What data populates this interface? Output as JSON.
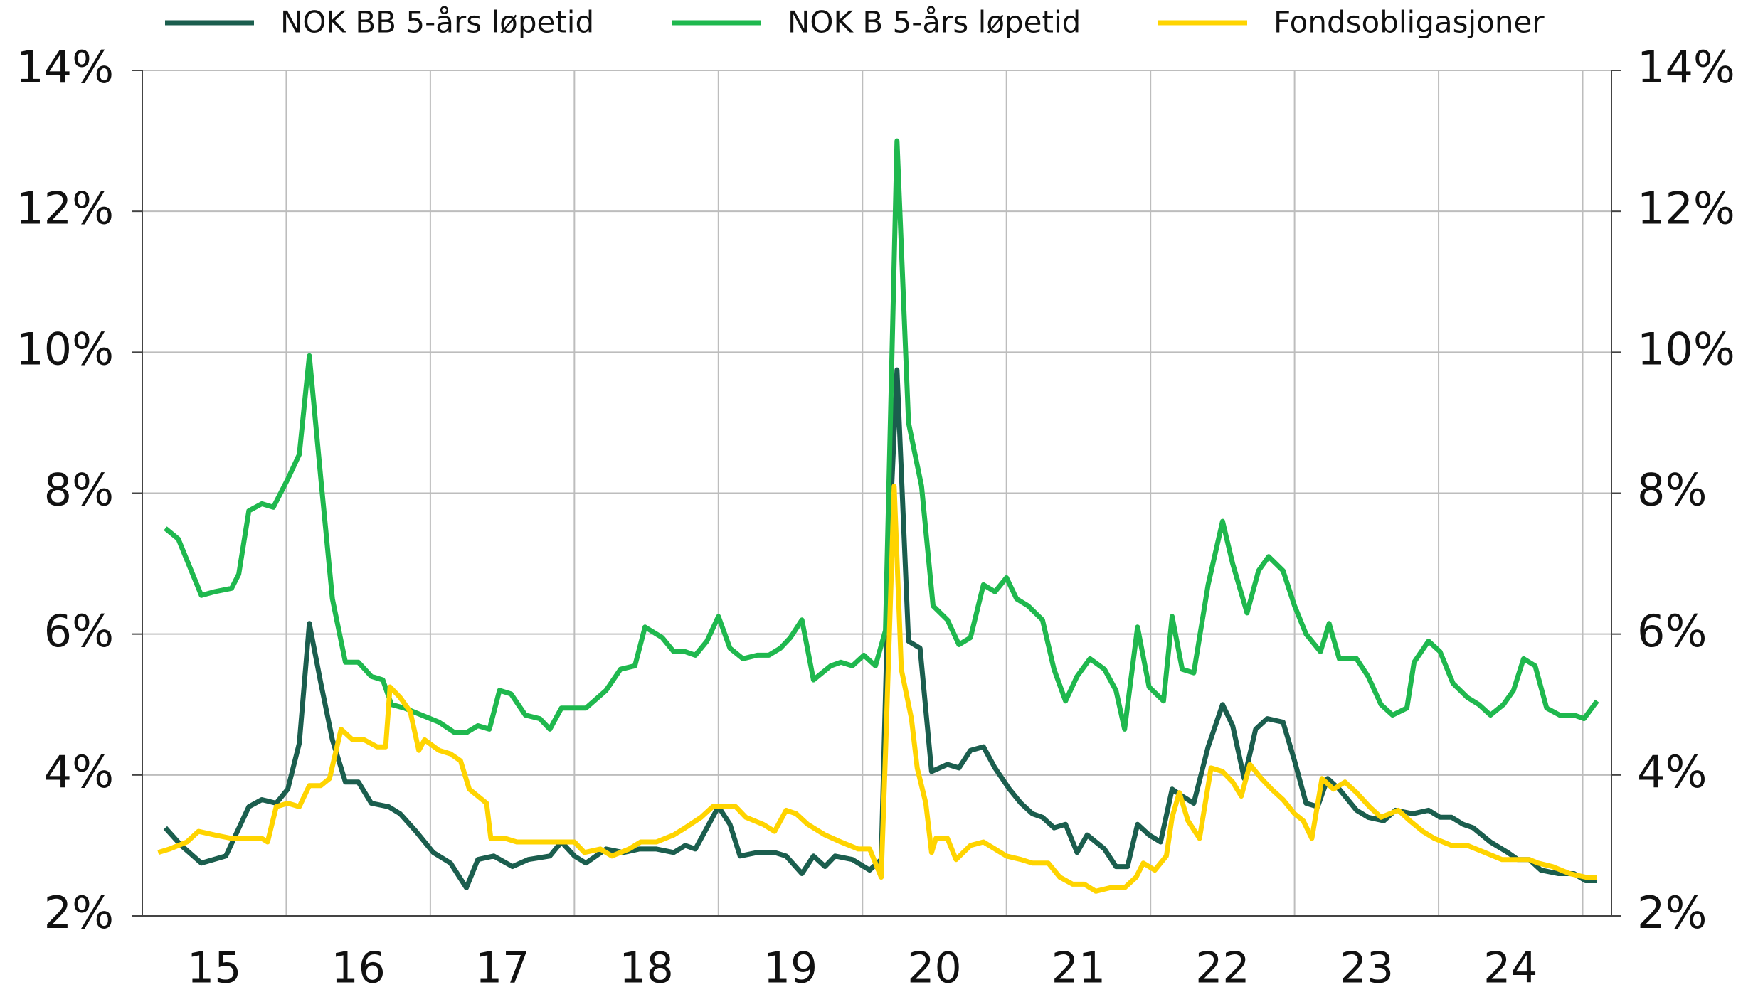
{
  "chart_data": {
    "type": "line",
    "xlim": [
      2015,
      2025.2
    ],
    "xticks": [
      {
        "value": 2015.5,
        "label": "15"
      },
      {
        "value": 2016.5,
        "label": "16"
      },
      {
        "value": 2017.5,
        "label": "17"
      },
      {
        "value": 2018.5,
        "label": "18"
      },
      {
        "value": 2019.5,
        "label": "19"
      },
      {
        "value": 2020.5,
        "label": "20"
      },
      {
        "value": 2021.5,
        "label": "21"
      },
      {
        "value": 2022.5,
        "label": "22"
      },
      {
        "value": 2023.5,
        "label": "23"
      },
      {
        "value": 2024.5,
        "label": "24"
      }
    ],
    "xgrid": [
      2016,
      2017,
      2018,
      2019,
      2020,
      2021,
      2022,
      2023,
      2024,
      2025
    ],
    "ylim": [
      2,
      14
    ],
    "yticks": [
      {
        "value": 2,
        "label": "2%"
      },
      {
        "value": 4,
        "label": "4%"
      },
      {
        "value": 6,
        "label": "6%"
      },
      {
        "value": 8,
        "label": "8%"
      },
      {
        "value": 10,
        "label": "10%"
      },
      {
        "value": 12,
        "label": "12%"
      },
      {
        "value": 14,
        "label": "14%"
      }
    ],
    "y2lim": [
      2,
      14
    ],
    "y2ticks": [
      {
        "value": 2,
        "label": "2%"
      },
      {
        "value": 4,
        "label": "4%"
      },
      {
        "value": 6,
        "label": "6%"
      },
      {
        "value": 8,
        "label": "8%"
      },
      {
        "value": 10,
        "label": "10%"
      },
      {
        "value": 12,
        "label": "12%"
      },
      {
        "value": 14,
        "label": "14%"
      }
    ],
    "grid": true,
    "legend": "top",
    "series": [
      {
        "name": "NOK BB 5-års løpetid",
        "color": "#1b5e4e",
        "x": [
          2015.16,
          2015.27,
          2015.41,
          2015.58,
          2015.74,
          2015.83,
          2015.93,
          2016.01,
          2016.09,
          2016.16,
          2016.24,
          2016.32,
          2016.41,
          2016.5,
          2016.59,
          2016.71,
          2016.79,
          2016.9,
          2017.02,
          2017.14,
          2017.25,
          2017.33,
          2017.44,
          2017.57,
          2017.68,
          2017.83,
          2017.91,
          2018.0,
          2018.08,
          2018.22,
          2018.34,
          2018.45,
          2018.57,
          2018.69,
          2018.77,
          2018.84,
          2019.0,
          2019.08,
          2019.15,
          2019.27,
          2019.39,
          2019.47,
          2019.58,
          2019.66,
          2019.74,
          2019.81,
          2019.93,
          2020.05,
          2020.13,
          2020.19,
          2020.24,
          2020.32,
          2020.4,
          2020.48,
          2020.59,
          2020.67,
          2020.75,
          2020.84,
          2020.92,
          2021.02,
          2021.1,
          2021.18,
          2021.25,
          2021.33,
          2021.41,
          2021.49,
          2021.56,
          2021.68,
          2021.76,
          2021.84,
          2021.91,
          2021.99,
          2022.07,
          2022.15,
          2022.22,
          2022.3,
          2022.4,
          2022.5,
          2022.57,
          2022.65,
          2022.73,
          2022.81,
          2022.92,
          2023.0,
          2023.08,
          2023.16,
          2023.23,
          2023.31,
          2023.43,
          2023.51,
          2023.62,
          2023.7,
          2023.82,
          2023.93,
          2024.01,
          2024.09,
          2024.17,
          2024.24,
          2024.36,
          2024.48,
          2024.55,
          2024.63,
          2024.71,
          2024.83,
          2024.94,
          2025.02,
          2025.1
        ],
        "values": [
          3.25,
          3.0,
          2.75,
          2.85,
          3.55,
          3.65,
          3.6,
          3.8,
          4.45,
          6.15,
          5.3,
          4.5,
          3.9,
          3.9,
          3.6,
          3.55,
          3.45,
          3.2,
          2.9,
          2.75,
          2.4,
          2.8,
          2.85,
          2.7,
          2.8,
          2.85,
          3.05,
          2.85,
          2.75,
          2.95,
          2.9,
          2.95,
          2.95,
          2.9,
          3.0,
          2.95,
          3.55,
          3.3,
          2.85,
          2.9,
          2.9,
          2.85,
          2.6,
          2.85,
          2.7,
          2.85,
          2.8,
          2.65,
          2.8,
          7.5,
          9.75,
          5.9,
          5.8,
          4.05,
          4.15,
          4.1,
          4.35,
          4.4,
          4.1,
          3.8,
          3.6,
          3.45,
          3.4,
          3.25,
          3.3,
          2.9,
          3.15,
          2.95,
          2.7,
          2.7,
          3.3,
          3.15,
          3.05,
          3.8,
          3.7,
          3.6,
          4.4,
          5.0,
          4.7,
          3.95,
          4.65,
          4.8,
          4.75,
          4.2,
          3.6,
          3.55,
          3.95,
          3.8,
          3.5,
          3.4,
          3.35,
          3.5,
          3.45,
          3.5,
          3.4,
          3.4,
          3.3,
          3.25,
          3.05,
          2.9,
          2.8,
          2.8,
          2.65,
          2.6,
          2.6,
          2.5,
          2.5
        ]
      },
      {
        "name": "NOK B 5-års løpetid",
        "color": "#1fb84e",
        "x": [
          2015.16,
          2015.25,
          2015.41,
          2015.5,
          2015.62,
          2015.67,
          2015.74,
          2015.83,
          2015.91,
          2016.01,
          2016.09,
          2016.16,
          2016.24,
          2016.32,
          2016.41,
          2016.5,
          2016.59,
          2016.67,
          2016.73,
          2016.82,
          2016.94,
          2017.06,
          2017.17,
          2017.25,
          2017.33,
          2017.41,
          2017.48,
          2017.56,
          2017.66,
          2017.76,
          2017.83,
          2017.91,
          2018.0,
          2018.08,
          2018.22,
          2018.32,
          2018.42,
          2018.49,
          2018.61,
          2018.69,
          2018.77,
          2018.84,
          2018.92,
          2019.0,
          2019.08,
          2019.17,
          2019.27,
          2019.35,
          2019.43,
          2019.5,
          2019.58,
          2019.66,
          2019.78,
          2019.85,
          2019.93,
          2020.01,
          2020.09,
          2020.16,
          2020.24,
          2020.32,
          2020.41,
          2020.49,
          2020.59,
          2020.67,
          2020.75,
          2020.84,
          2020.92,
          2021.0,
          2021.07,
          2021.15,
          2021.25,
          2021.33,
          2021.41,
          2021.49,
          2021.58,
          2021.68,
          2021.76,
          2021.82,
          2021.91,
          2021.99,
          2022.09,
          2022.15,
          2022.22,
          2022.3,
          2022.4,
          2022.5,
          2022.57,
          2022.67,
          2022.75,
          2022.82,
          2022.92,
          2023.0,
          2023.08,
          2023.18,
          2023.24,
          2023.31,
          2023.43,
          2023.51,
          2023.6,
          2023.68,
          2023.78,
          2023.83,
          2023.93,
          2024.01,
          2024.1,
          2024.2,
          2024.28,
          2024.36,
          2024.45,
          2024.52,
          2024.59,
          2024.67,
          2024.75,
          2024.84,
          2024.94,
          2025.01,
          2025.1
        ],
        "values": [
          7.5,
          7.35,
          6.55,
          6.6,
          6.65,
          6.85,
          7.75,
          7.85,
          7.8,
          8.2,
          8.55,
          9.95,
          8.2,
          6.5,
          5.6,
          5.6,
          5.4,
          5.35,
          5.0,
          4.95,
          4.85,
          4.75,
          4.6,
          4.6,
          4.7,
          4.65,
          5.2,
          5.15,
          4.85,
          4.8,
          4.65,
          4.95,
          4.95,
          4.95,
          5.2,
          5.5,
          5.55,
          6.1,
          5.95,
          5.75,
          5.75,
          5.7,
          5.9,
          6.25,
          5.8,
          5.65,
          5.7,
          5.7,
          5.8,
          5.95,
          6.2,
          5.35,
          5.55,
          5.6,
          5.55,
          5.7,
          5.55,
          6.05,
          13.0,
          9.0,
          8.1,
          6.4,
          6.2,
          5.85,
          5.95,
          6.7,
          6.6,
          6.8,
          6.5,
          6.4,
          6.2,
          5.5,
          5.05,
          5.4,
          5.65,
          5.5,
          5.2,
          4.65,
          6.1,
          5.25,
          5.05,
          6.25,
          5.5,
          5.45,
          6.7,
          7.6,
          7.0,
          6.3,
          6.9,
          7.1,
          6.9,
          6.4,
          6.0,
          5.75,
          6.15,
          5.65,
          5.65,
          5.4,
          5.0,
          4.85,
          4.95,
          5.6,
          5.9,
          5.75,
          5.3,
          5.1,
          5.0,
          4.85,
          5.0,
          5.2,
          5.65,
          5.55,
          4.95,
          4.85,
          4.85,
          4.8,
          5.05
        ]
      },
      {
        "name": "Fondsobligasjoner",
        "color": "#ffd400",
        "x": [
          2015.11,
          2015.19,
          2015.31,
          2015.39,
          2015.5,
          2015.62,
          2015.74,
          2015.83,
          2015.87,
          2015.93,
          2016.01,
          2016.09,
          2016.16,
          2016.24,
          2016.3,
          2016.38,
          2016.46,
          2016.54,
          2016.63,
          2016.69,
          2016.72,
          2016.79,
          2016.86,
          2016.92,
          2016.96,
          2017.06,
          2017.14,
          2017.21,
          2017.27,
          2017.33,
          2017.39,
          2017.42,
          2017.52,
          2017.6,
          2017.68,
          2017.79,
          2017.91,
          2018.0,
          2018.07,
          2018.18,
          2018.26,
          2018.38,
          2018.46,
          2018.57,
          2018.69,
          2018.77,
          2018.88,
          2018.96,
          2019.04,
          2019.12,
          2019.19,
          2019.31,
          2019.39,
          2019.47,
          2019.54,
          2019.62,
          2019.74,
          2019.85,
          2019.97,
          2020.05,
          2020.13,
          2020.16,
          2020.22,
          2020.27,
          2020.34,
          2020.38,
          2020.44,
          2020.48,
          2020.51,
          2020.59,
          2020.65,
          2020.75,
          2020.84,
          2020.92,
          2021.0,
          2021.1,
          2021.18,
          2021.29,
          2021.37,
          2021.46,
          2021.54,
          2021.62,
          2021.72,
          2021.82,
          2021.9,
          2021.95,
          2022.03,
          2022.11,
          2022.15,
          2022.2,
          2022.26,
          2022.34,
          2022.42,
          2022.5,
          2022.57,
          2022.63,
          2022.69,
          2022.77,
          2022.84,
          2022.92,
          2023.0,
          2023.06,
          2023.12,
          2023.19,
          2023.27,
          2023.35,
          2023.43,
          2023.52,
          2023.6,
          2023.66,
          2023.72,
          2023.8,
          2023.89,
          2023.97,
          2024.09,
          2024.2,
          2024.32,
          2024.44,
          2024.55,
          2024.63,
          2024.69,
          2024.79,
          2024.91,
          2025.02,
          2025.1
        ],
        "values": [
          2.9,
          2.95,
          3.05,
          3.2,
          3.15,
          3.1,
          3.1,
          3.1,
          3.05,
          3.55,
          3.6,
          3.55,
          3.85,
          3.85,
          3.95,
          4.65,
          4.5,
          4.5,
          4.4,
          4.4,
          5.25,
          5.1,
          4.9,
          4.35,
          4.5,
          4.35,
          4.3,
          4.2,
          3.8,
          3.7,
          3.6,
          3.1,
          3.1,
          3.05,
          3.05,
          3.05,
          3.05,
          3.05,
          2.9,
          2.95,
          2.85,
          2.95,
          3.05,
          3.05,
          3.15,
          3.25,
          3.4,
          3.55,
          3.55,
          3.55,
          3.4,
          3.3,
          3.2,
          3.5,
          3.45,
          3.3,
          3.15,
          3.05,
          2.95,
          2.95,
          2.55,
          4.3,
          8.1,
          5.5,
          4.8,
          4.1,
          3.6,
          2.9,
          3.1,
          3.1,
          2.8,
          3.0,
          3.05,
          2.95,
          2.85,
          2.8,
          2.75,
          2.75,
          2.55,
          2.45,
          2.45,
          2.35,
          2.4,
          2.4,
          2.55,
          2.75,
          2.65,
          2.85,
          3.4,
          3.75,
          3.35,
          3.1,
          4.1,
          4.05,
          3.9,
          3.7,
          4.15,
          3.95,
          3.8,
          3.65,
          3.45,
          3.35,
          3.1,
          3.95,
          3.8,
          3.9,
          3.75,
          3.55,
          3.4,
          3.45,
          3.5,
          3.35,
          3.2,
          3.1,
          3.0,
          3.0,
          2.9,
          2.8,
          2.8,
          2.8,
          2.75,
          2.7,
          2.6,
          2.55,
          2.55
        ]
      }
    ]
  }
}
